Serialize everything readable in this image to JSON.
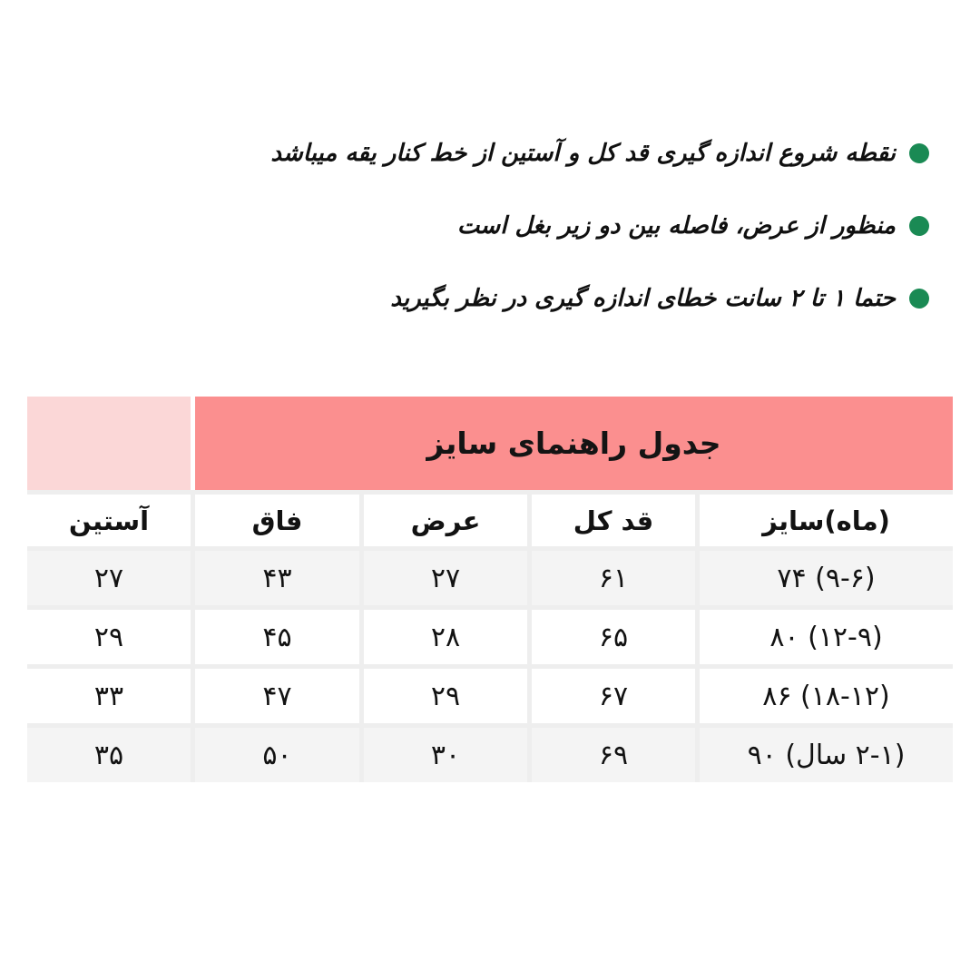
{
  "bullets": {
    "dot_color": "#1a8a54",
    "items": [
      {
        "text": "نقطه شروع اندازه گیری قد کل و آستین از خط کنار یقه میباشد"
      },
      {
        "text": "منظور از عرض، فاصله بین دو زیر بغل است"
      },
      {
        "text": "حتما ۱ تا ۲ سانت خطای اندازه گیری در نظر بگیرید"
      }
    ]
  },
  "table": {
    "title": "جدول راهنمای سایز",
    "colors": {
      "header_band": "#fb8f8f",
      "header_band_side": "#fbd7d7",
      "row_alt": "#f4f4f4",
      "gridline": "#eeeeee"
    },
    "headers": [
      "(ماه)سایز",
      "قد کل",
      "عرض",
      "فاق",
      "آستین"
    ],
    "rows": [
      {
        "size": "(۹-۶) ۷۴",
        "total_length": "۶۱",
        "width": "۲۷",
        "rise": "۴۳",
        "sleeve": "۲۷"
      },
      {
        "size": "(۱۲-۹) ۸۰",
        "total_length": "۶۵",
        "width": "۲۸",
        "rise": "۴۵",
        "sleeve": "۲۹"
      },
      {
        "size": "(۱۸-۱۲) ۸۶",
        "total_length": "۶۷",
        "width": "۲۹",
        "rise": "۴۷",
        "sleeve": "۳۳"
      },
      {
        "size": "(۲-۱ سال) ۹۰",
        "total_length": "۶۹",
        "width": "۳۰",
        "rise": "۵۰",
        "sleeve": "۳۵"
      }
    ]
  }
}
